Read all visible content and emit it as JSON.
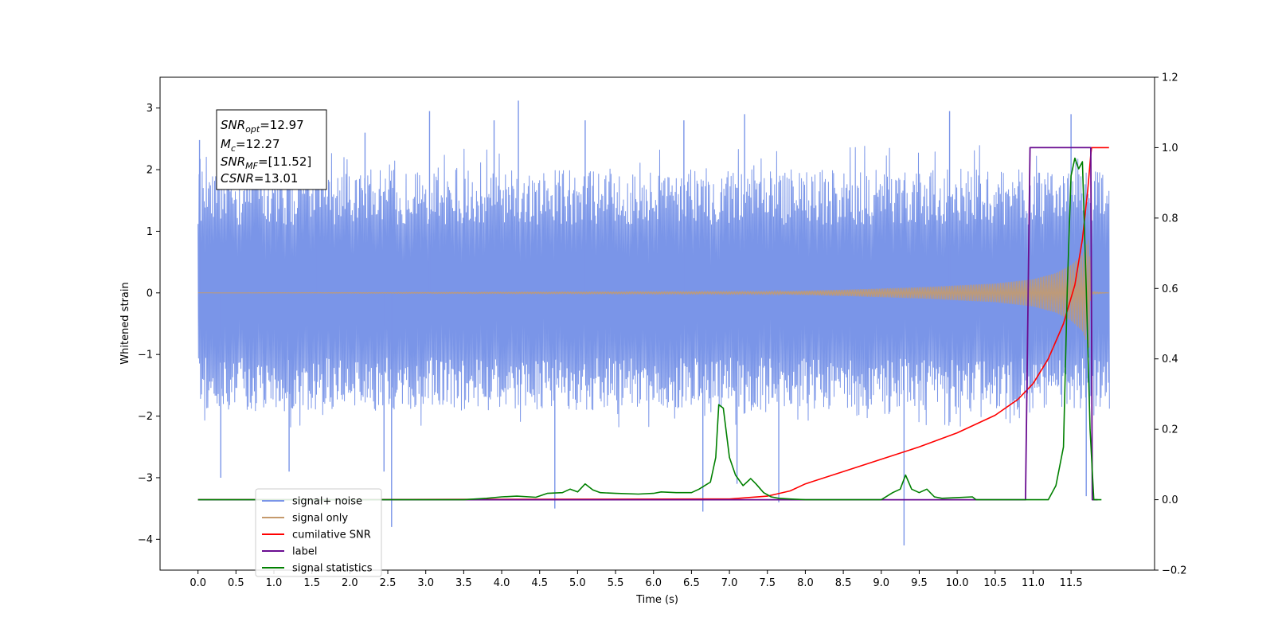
{
  "chart_data": {
    "type": "line",
    "title": "",
    "xlabel": "Time (s)",
    "ylabel": "Whitened strain",
    "y2label": "",
    "xlim": [
      -0.5,
      12.6
    ],
    "ylim": [
      -4.5,
      3.5
    ],
    "y2lim": [
      -0.2,
      1.2
    ],
    "x_ticks": [
      0.0,
      0.5,
      1.0,
      1.5,
      2.0,
      2.5,
      3.0,
      3.5,
      4.0,
      4.5,
      5.0,
      5.5,
      6.0,
      6.5,
      7.0,
      7.5,
      8.0,
      8.5,
      9.0,
      9.5,
      10.0,
      10.5,
      11.0,
      11.5
    ],
    "x_tick_labels": [
      "0.0",
      "0.5",
      "1.0",
      "1.5",
      "2.0",
      "2.5",
      "3.0",
      "3.5",
      "4.0",
      "4.5",
      "5.0",
      "5.5",
      "6.0",
      "6.5",
      "7.0",
      "7.5",
      "8.0",
      "8.5",
      "9.0",
      "9.5",
      "10.0",
      "10.5",
      "11.0",
      "11.5"
    ],
    "y_ticks": [
      3,
      2,
      1,
      0,
      -1,
      -2,
      -3,
      -4
    ],
    "y_tick_labels": [
      "3",
      "2",
      "1",
      "0",
      "−1",
      "−2",
      "−3",
      "−4"
    ],
    "y2_ticks": [
      1.2,
      1.0,
      0.8,
      0.6,
      0.4,
      0.2,
      0.0,
      -0.2
    ],
    "y2_tick_labels": [
      "1.2",
      "1.0",
      "0.8",
      "0.6",
      "0.4",
      "0.2",
      "0.0",
      "−0.2"
    ],
    "grid": false,
    "legend_position": "lower-left",
    "annotation": {
      "snr_opt": "=12.97",
      "mc": "=12.27",
      "snr_mf": "=[11.52]",
      "csnr": "=13.01"
    },
    "series": [
      {
        "name": "signal+ noise",
        "axis": "left",
        "color": "#7a95e8",
        "x_range": [
          0.0,
          12.0
        ],
        "envelope_upper_typical": 2.0,
        "envelope_lower_typical": -1.9,
        "peaks": [
          {
            "x": 0.02,
            "y": 2.48
          },
          {
            "x": 0.3,
            "y": -3.0
          },
          {
            "x": 1.2,
            "y": 2.15
          },
          {
            "x": 1.2,
            "y": -2.9
          },
          {
            "x": 1.55,
            "y": 2.5
          },
          {
            "x": 2.2,
            "y": 2.6
          },
          {
            "x": 2.45,
            "y": -2.9
          },
          {
            "x": 2.55,
            "y": -3.8
          },
          {
            "x": 3.05,
            "y": 2.95
          },
          {
            "x": 3.9,
            "y": 2.8
          },
          {
            "x": 4.22,
            "y": 3.12
          },
          {
            "x": 4.7,
            "y": -3.5
          },
          {
            "x": 5.1,
            "y": 2.8
          },
          {
            "x": 6.4,
            "y": 2.8
          },
          {
            "x": 6.65,
            "y": -3.55
          },
          {
            "x": 7.1,
            "y": -3.1
          },
          {
            "x": 7.2,
            "y": 2.9
          },
          {
            "x": 7.65,
            "y": -3.4
          },
          {
            "x": 9.3,
            "y": -4.1
          },
          {
            "x": 9.9,
            "y": 2.95
          },
          {
            "x": 11.5,
            "y": 2.9
          },
          {
            "x": 11.7,
            "y": -3.3
          }
        ]
      },
      {
        "name": "signal only",
        "axis": "left",
        "color": "#c59a6c",
        "envelope": [
          {
            "x": 0.0,
            "amp": 0.0
          },
          {
            "x": 7.5,
            "amp": 0.02
          },
          {
            "x": 8.5,
            "amp": 0.05
          },
          {
            "x": 9.5,
            "amp": 0.09
          },
          {
            "x": 10.5,
            "amp": 0.15
          },
          {
            "x": 11.0,
            "amp": 0.22
          },
          {
            "x": 11.3,
            "amp": 0.32
          },
          {
            "x": 11.5,
            "amp": 0.45
          },
          {
            "x": 11.65,
            "amp": 0.62
          },
          {
            "x": 11.74,
            "amp": 0.9
          },
          {
            "x": 11.76,
            "amp": 0.02
          },
          {
            "x": 12.0,
            "amp": 0.0
          }
        ]
      },
      {
        "name": "cumilative SNR",
        "axis": "right",
        "color": "#ff0000",
        "x": [
          0.0,
          7.0,
          7.5,
          7.8,
          8.0,
          8.5,
          9.0,
          9.5,
          10.0,
          10.5,
          10.8,
          11.0,
          11.2,
          11.4,
          11.55,
          11.65,
          11.72,
          11.76,
          11.77,
          12.0
        ],
        "values": [
          0.0,
          0.002,
          0.01,
          0.025,
          0.045,
          0.08,
          0.115,
          0.15,
          0.19,
          0.24,
          0.285,
          0.33,
          0.4,
          0.5,
          0.61,
          0.74,
          0.88,
          0.98,
          1.0,
          1.0
        ]
      },
      {
        "name": "label",
        "axis": "right",
        "color": "#6a0d91",
        "x": [
          0.0,
          10.9,
          10.96,
          11.76,
          11.78,
          11.85
        ],
        "values": [
          0.0,
          0.0,
          1.0,
          1.0,
          0.0,
          0.0
        ]
      },
      {
        "name": "signal statistics",
        "axis": "right",
        "color": "#008000",
        "x": [
          0.0,
          3.5,
          3.8,
          4.0,
          4.2,
          4.45,
          4.6,
          4.8,
          4.9,
          5.0,
          5.1,
          5.2,
          5.3,
          5.5,
          5.8,
          6.0,
          6.1,
          6.3,
          6.5,
          6.6,
          6.75,
          6.82,
          6.86,
          6.92,
          7.0,
          7.08,
          7.18,
          7.28,
          7.35,
          7.45,
          7.55,
          7.65,
          7.8,
          8.0,
          9.0,
          9.15,
          9.25,
          9.32,
          9.4,
          9.5,
          9.6,
          9.7,
          9.8,
          10.0,
          10.2,
          10.25,
          11.2,
          11.3,
          11.4,
          11.45,
          11.5,
          11.55,
          11.6,
          11.65,
          11.7,
          11.75,
          11.8,
          11.9
        ],
        "values": [
          0.0,
          0.0,
          0.004,
          0.008,
          0.01,
          0.007,
          0.018,
          0.02,
          0.03,
          0.022,
          0.045,
          0.028,
          0.02,
          0.018,
          0.016,
          0.018,
          0.022,
          0.02,
          0.02,
          0.03,
          0.05,
          0.12,
          0.27,
          0.26,
          0.12,
          0.07,
          0.04,
          0.06,
          0.045,
          0.02,
          0.008,
          0.004,
          0.002,
          0.0,
          0.0,
          0.02,
          0.03,
          0.07,
          0.03,
          0.02,
          0.03,
          0.008,
          0.004,
          0.006,
          0.008,
          0.0,
          0.0,
          0.04,
          0.15,
          0.6,
          0.92,
          0.97,
          0.94,
          0.96,
          0.6,
          0.2,
          0.0,
          0.0
        ]
      }
    ]
  }
}
